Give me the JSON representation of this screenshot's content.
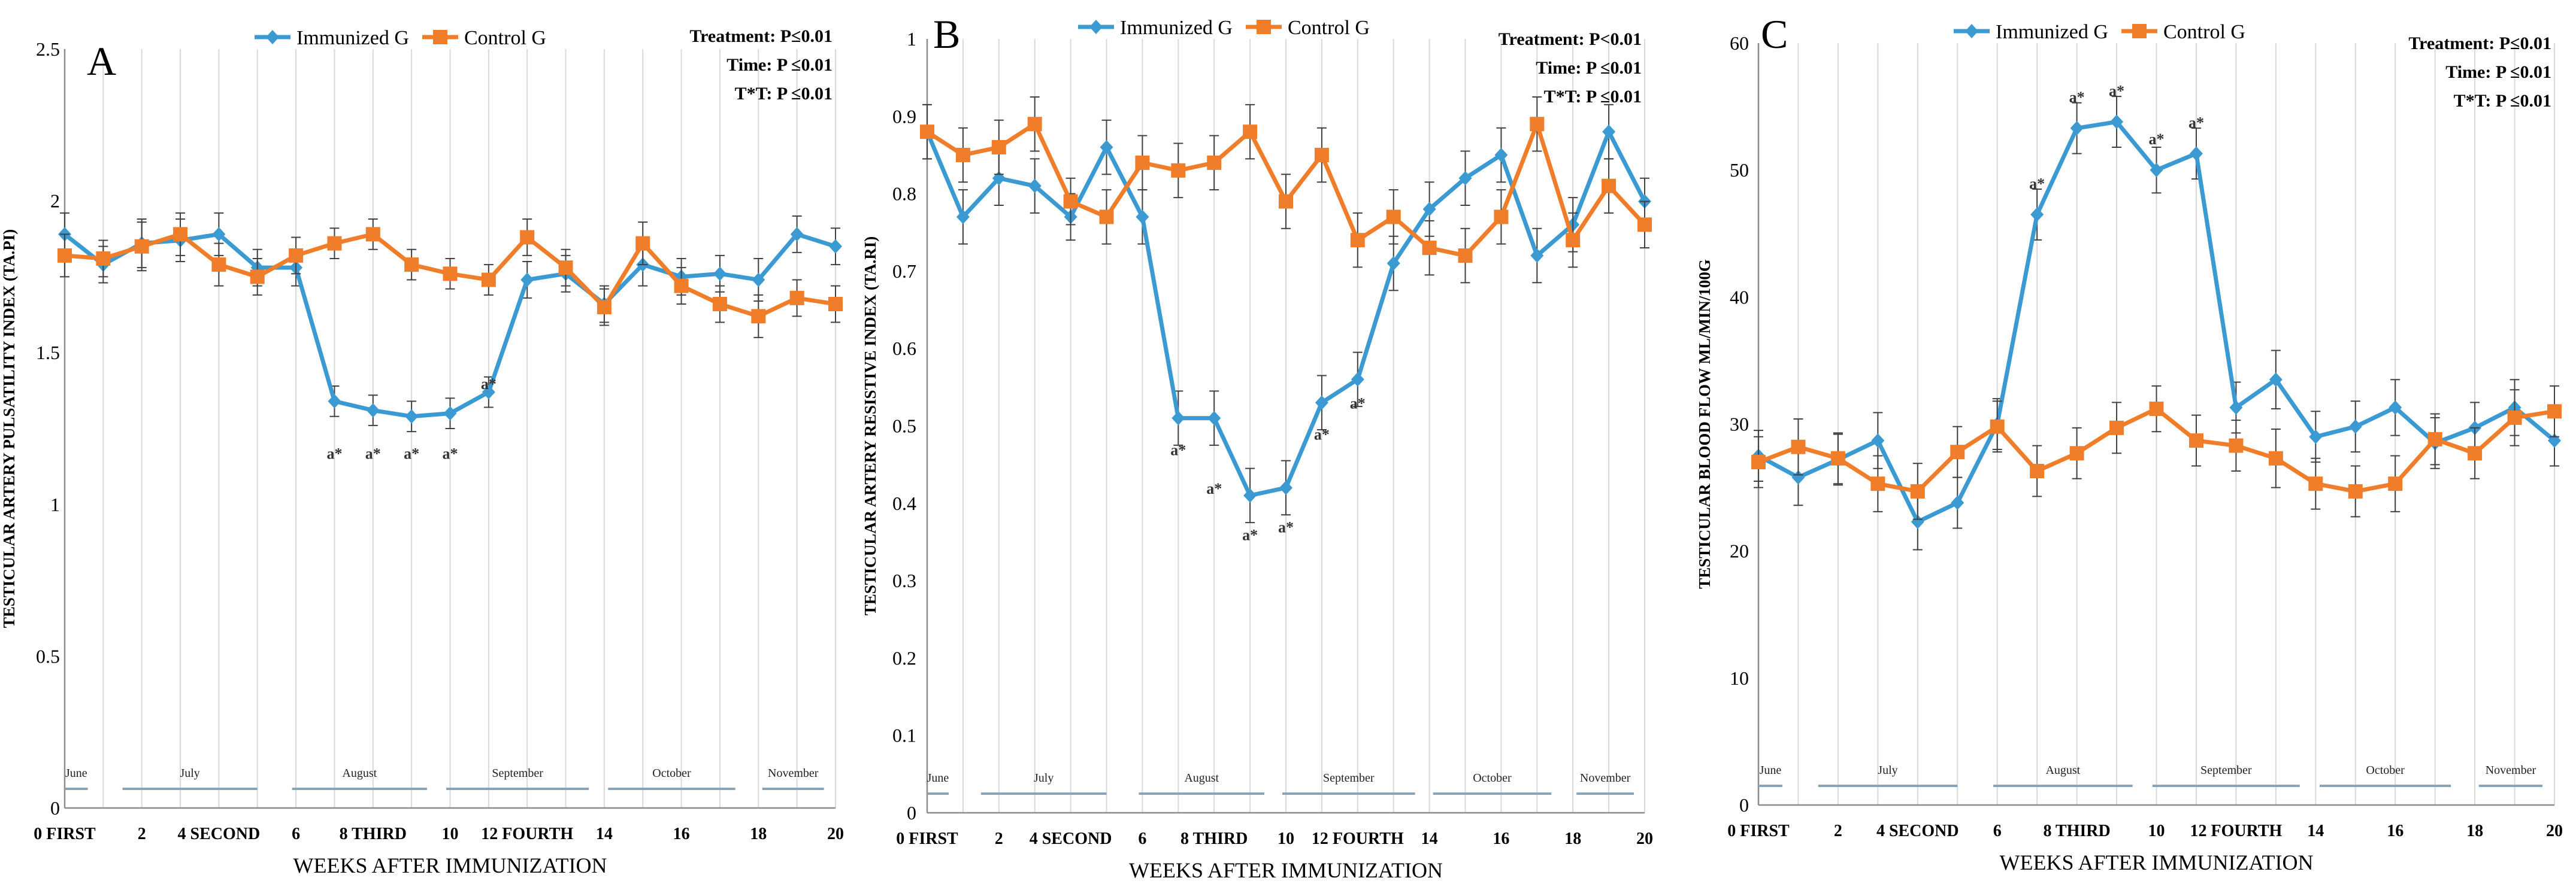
{
  "figure": {
    "colors": {
      "immunized": "#3B9AD2",
      "control": "#F07D2A",
      "grid": "#D9D9D9",
      "axis": "#8C8C8C",
      "month_line": "#8AA4B7",
      "text": "#000000",
      "error_bar": "#404040"
    },
    "x_axis_label": "WEEKS AFTER IMMUNIZATION"
  },
  "chart_data": [
    {
      "type": "line",
      "panel_letter": "A",
      "ylabel": "TESTICULAR ARTERY PULSATILITY INDEX (TA.PI)",
      "xlabel": "WEEKS AFTER IMMUNIZATION",
      "ylim": [
        0,
        2.5
      ],
      "y_ticks": [
        0,
        0.5,
        1,
        1.5,
        2,
        2.5
      ],
      "y_tick_labels": [
        "0",
        "0.5",
        "1",
        "1.5",
        "2",
        "2.5"
      ],
      "xlim": [
        0,
        20
      ],
      "x_ticks": [
        {
          "x": 0,
          "label": "0 FIRST"
        },
        {
          "x": 2,
          "label": "2"
        },
        {
          "x": 4,
          "label": "4 SECOND"
        },
        {
          "x": 6,
          "label": "6"
        },
        {
          "x": 8,
          "label": "8  THIRD"
        },
        {
          "x": 10,
          "label": "10"
        },
        {
          "x": 12,
          "label": "12  FOURTH"
        },
        {
          "x": 14,
          "label": "14"
        },
        {
          "x": 16,
          "label": "16"
        },
        {
          "x": 18,
          "label": "18"
        },
        {
          "x": 20,
          "label": "20"
        }
      ],
      "legend": [
        "Immunized G",
        "Control G"
      ],
      "stats": [
        "Treatment: P≤0.01",
        "Time: P ≤0.01",
        "T*T: P ≤0.01"
      ],
      "months": [
        {
          "label": "June",
          "start": 0,
          "end": 0.6
        },
        {
          "label": "July",
          "start": 1.5,
          "end": 5.0
        },
        {
          "label": "August",
          "start": 5.9,
          "end": 9.4
        },
        {
          "label": "September",
          "start": 9.9,
          "end": 13.6
        },
        {
          "label": "October",
          "start": 14.1,
          "end": 17.4
        },
        {
          "label": "November",
          "start": 18.1,
          "end": 19.7
        }
      ],
      "x": [
        0,
        1,
        2,
        3,
        4,
        5,
        6,
        7,
        8,
        9,
        10,
        11,
        12,
        13,
        14,
        15,
        16,
        17,
        18,
        19,
        20
      ],
      "series": [
        {
          "name": "Immunized G",
          "values": [
            1.89,
            1.79,
            1.86,
            1.87,
            1.89,
            1.78,
            1.78,
            1.34,
            1.31,
            1.29,
            1.3,
            1.37,
            1.74,
            1.76,
            1.66,
            1.79,
            1.75,
            1.76,
            1.74,
            1.89,
            1.85
          ],
          "errors": [
            0.07,
            0.06,
            0.08,
            0.07,
            0.07,
            0.06,
            0.06,
            0.05,
            0.05,
            0.05,
            0.05,
            0.05,
            0.06,
            0.06,
            0.06,
            0.07,
            0.06,
            0.06,
            0.07,
            0.06,
            0.06
          ]
        },
        {
          "name": "Control G",
          "values": [
            1.82,
            1.81,
            1.85,
            1.89,
            1.79,
            1.75,
            1.82,
            1.86,
            1.89,
            1.79,
            1.76,
            1.74,
            1.88,
            1.78,
            1.65,
            1.86,
            1.72,
            1.66,
            1.62,
            1.68,
            1.66
          ]
        }
      ],
      "annotations": [
        {
          "text": "a*",
          "x": 7,
          "y": 1.17
        },
        {
          "text": "a*",
          "x": 8,
          "y": 1.17
        },
        {
          "text": "a*",
          "x": 9,
          "y": 1.17
        },
        {
          "text": "a*",
          "x": 10,
          "y": 1.17
        },
        {
          "text": "a*",
          "x": 11,
          "y": 1.4
        }
      ]
    },
    {
      "type": "line",
      "panel_letter": "B",
      "ylabel": "TESTICULAR ARTERY RESISTIVE INDEX (TA.RI)",
      "xlabel": "WEEKS AFTER IMMUNIZATION",
      "ylim": [
        0,
        1
      ],
      "y_ticks": [
        0,
        0.1,
        0.2,
        0.3,
        0.4,
        0.5,
        0.6,
        0.7,
        0.8,
        0.9,
        1
      ],
      "y_tick_labels": [
        "0",
        "0.1",
        "0.2",
        "0.3",
        "0.4",
        "0.5",
        "0.6",
        "0.7",
        "0.8",
        "0.9",
        "1"
      ],
      "xlim": [
        0,
        20
      ],
      "x_ticks": [
        {
          "x": 0,
          "label": "0 FIRST"
        },
        {
          "x": 2,
          "label": "2"
        },
        {
          "x": 4,
          "label": "4 SECOND"
        },
        {
          "x": 6,
          "label": "6"
        },
        {
          "x": 8,
          "label": "8  THIRD"
        },
        {
          "x": 10,
          "label": "10"
        },
        {
          "x": 12,
          "label": "12  FOURTH"
        },
        {
          "x": 14,
          "label": "14"
        },
        {
          "x": 16,
          "label": "16"
        },
        {
          "x": 18,
          "label": "18"
        },
        {
          "x": 20,
          "label": "20"
        }
      ],
      "legend": [
        "Immunized G",
        "Control G"
      ],
      "stats": [
        "Treatment: P<0.01",
        "Time: P ≤0.01",
        "T*T: P ≤0.01"
      ],
      "months": [
        {
          "label": "June",
          "start": 0,
          "end": 0.6
        },
        {
          "label": "July",
          "start": 1.5,
          "end": 5.0
        },
        {
          "label": "August",
          "start": 5.9,
          "end": 9.4
        },
        {
          "label": "September",
          "start": 9.9,
          "end": 13.6
        },
        {
          "label": "October",
          "start": 14.1,
          "end": 17.4
        },
        {
          "label": "November",
          "start": 18.1,
          "end": 19.7
        }
      ],
      "x": [
        0,
        1,
        2,
        3,
        4,
        5,
        6,
        7,
        8,
        9,
        10,
        11,
        12,
        13,
        14,
        15,
        16,
        17,
        18,
        19,
        20
      ],
      "series": [
        {
          "name": "Immunized G",
          "values": [
            0.88,
            0.77,
            0.82,
            0.81,
            0.77,
            0.86,
            0.77,
            0.51,
            0.51,
            0.41,
            0.42,
            0.53,
            0.56,
            0.71,
            0.78,
            0.82,
            0.85,
            0.72,
            0.76,
            0.88,
            0.79
          ],
          "errors": [
            0.035,
            0.035,
            0.035,
            0.035,
            0.03,
            0.035,
            0.035,
            0.035,
            0.035,
            0.035,
            0.035,
            0.035,
            0.035,
            0.035,
            0.035,
            0.035,
            0.035,
            0.035,
            0.035,
            0.035,
            0.03
          ]
        },
        {
          "name": "Control G",
          "values": [
            0.88,
            0.85,
            0.86,
            0.89,
            0.79,
            0.77,
            0.84,
            0.83,
            0.84,
            0.88,
            0.79,
            0.85,
            0.74,
            0.77,
            0.73,
            0.72,
            0.77,
            0.89,
            0.74,
            0.81,
            0.76
          ]
        }
      ],
      "annotations": [
        {
          "text": "a*",
          "x": 7,
          "y": 0.47
        },
        {
          "text": "a*",
          "x": 8,
          "y": 0.42
        },
        {
          "text": "a*",
          "x": 9,
          "y": 0.36
        },
        {
          "text": "a*",
          "x": 10,
          "y": 0.37
        },
        {
          "text": "a*",
          "x": 11,
          "y": 0.49
        },
        {
          "text": "a*",
          "x": 12,
          "y": 0.53
        }
      ]
    },
    {
      "type": "line",
      "panel_letter": "C",
      "ylabel": "TESTICULAR BLOOD FLOW ML/MIN/100G",
      "xlabel": "WEEKS AFTER IMMUNIZATION",
      "ylim": [
        0,
        60
      ],
      "y_ticks": [
        0,
        10,
        20,
        30,
        40,
        50,
        60
      ],
      "y_tick_labels": [
        "0",
        "10",
        "20",
        "30",
        "40",
        "50",
        "60"
      ],
      "xlim": [
        0,
        20
      ],
      "x_ticks": [
        {
          "x": 0,
          "label": "0 FIRST"
        },
        {
          "x": 2,
          "label": "2"
        },
        {
          "x": 4,
          "label": "4 SECOND"
        },
        {
          "x": 6,
          "label": "6"
        },
        {
          "x": 8,
          "label": "8  THIRD"
        },
        {
          "x": 10,
          "label": "10"
        },
        {
          "x": 12,
          "label": "12  FOURTH"
        },
        {
          "x": 14,
          "label": "14"
        },
        {
          "x": 16,
          "label": "16"
        },
        {
          "x": 18,
          "label": "18"
        },
        {
          "x": 20,
          "label": "20"
        }
      ],
      "legend": [
        "Immunized G",
        "Control G"
      ],
      "stats": [
        "Treatment: P≤0.01",
        "Time: P ≤0.01",
        "T*T: P ≤0.01"
      ],
      "months": [
        {
          "label": "June",
          "start": 0,
          "end": 0.6
        },
        {
          "label": "July",
          "start": 1.5,
          "end": 5.0
        },
        {
          "label": "August",
          "start": 5.9,
          "end": 9.4
        },
        {
          "label": "September",
          "start": 9.9,
          "end": 13.6
        },
        {
          "label": "October",
          "start": 14.1,
          "end": 17.4
        },
        {
          "label": "November",
          "start": 18.1,
          "end": 19.7
        }
      ],
      "x": [
        0,
        1,
        2,
        3,
        4,
        5,
        6,
        7,
        8,
        9,
        10,
        11,
        12,
        13,
        14,
        15,
        16,
        17,
        18,
        19,
        20
      ],
      "series": [
        {
          "name": "Immunized G",
          "values": [
            27.5,
            25.8,
            27.2,
            28.7,
            22.3,
            23.8,
            30.0,
            46.5,
            53.3,
            53.8,
            50.0,
            51.3,
            31.3,
            33.5,
            29.0,
            29.8,
            31.3,
            28.5,
            29.7,
            31.3,
            28.7
          ],
          "errors": [
            2.0,
            2.2,
            2.0,
            2.2,
            2.2,
            2.0,
            2.0,
            2.0,
            2.0,
            2.0,
            1.8,
            2.0,
            2.0,
            2.3,
            2.0,
            2.0,
            2.2,
            2.0,
            2.0,
            2.2,
            2.0
          ]
        },
        {
          "name": "Control G",
          "values": [
            27.0,
            28.2,
            27.3,
            25.3,
            24.7,
            27.8,
            29.8,
            26.3,
            27.7,
            29.7,
            31.2,
            28.7,
            28.3,
            27.3,
            25.3,
            24.7,
            25.3,
            28.8,
            27.7,
            30.5,
            31.0
          ]
        }
      ],
      "annotations": [
        {
          "text": "a*",
          "x": 7,
          "y": 49.0
        },
        {
          "text": "a*",
          "x": 8,
          "y": 55.8
        },
        {
          "text": "a*",
          "x": 9,
          "y": 56.3
        },
        {
          "text": "a*",
          "x": 10,
          "y": 52.5
        },
        {
          "text": "a*",
          "x": 11,
          "y": 53.8
        }
      ]
    }
  ]
}
